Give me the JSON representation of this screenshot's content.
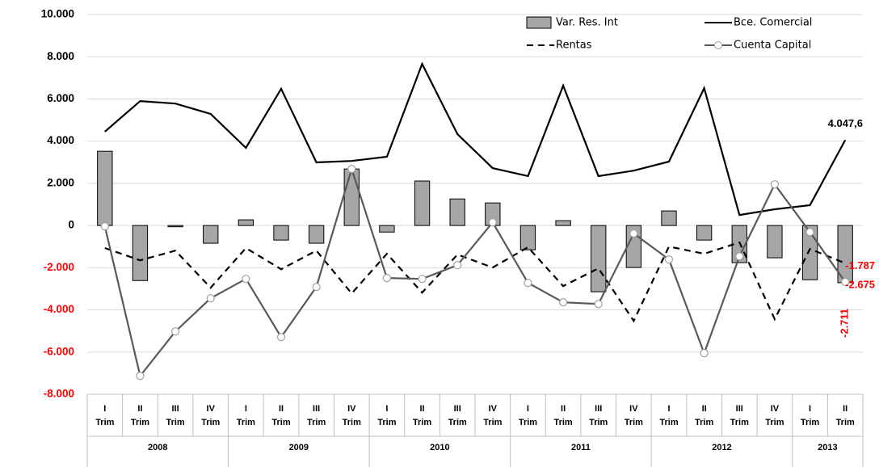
{
  "chart_data": {
    "type": "bar",
    "categories": [
      "I",
      "II",
      "III",
      "IV",
      "I",
      "II",
      "III",
      "IV",
      "I",
      "II",
      "III",
      "IV",
      "I",
      "II",
      "III",
      "IV",
      "I",
      "II",
      "III",
      "IV",
      "I",
      "II"
    ],
    "category_suffix": "Trim",
    "years": [
      "2008",
      "2008",
      "2008",
      "2008",
      "2009",
      "2009",
      "2009",
      "2009",
      "2010",
      "2010",
      "2010",
      "2010",
      "2011",
      "2011",
      "2011",
      "2011",
      "2012",
      "2012",
      "2012",
      "2012",
      "2013",
      "2013"
    ],
    "ylim": [
      -8000,
      10000
    ],
    "yticks": [
      {
        "value": -8000,
        "label": "-8.000"
      },
      {
        "value": -6000,
        "label": "-6.000"
      },
      {
        "value": -4000,
        "label": "-4.000"
      },
      {
        "value": -2000,
        "label": "-2.000"
      },
      0,
      {
        "value": 2000,
        "label": "2.000"
      },
      {
        "value": 4000,
        "label": "4.000"
      },
      {
        "value": 6000,
        "label": "6.000"
      },
      {
        "value": 8000,
        "label": "8.000"
      },
      {
        "value": 10000,
        "label": "10.000"
      }
    ],
    "negative_tick_color": "#ff0000",
    "grid": true,
    "series": [
      {
        "name": "Var. Res. Int",
        "type": "bar",
        "color": "#a6a6a6",
        "values": [
          3520,
          -2610,
          -60,
          -840,
          270,
          -690,
          -840,
          2680,
          -310,
          2110,
          1260,
          1070,
          -1150,
          230,
          -3140,
          -1990,
          690,
          -690,
          -1760,
          -1530,
          -2570,
          -2711
        ],
        "value_labels": [
          null,
          null,
          null,
          null,
          null,
          null,
          null,
          null,
          null,
          null,
          null,
          null,
          null,
          null,
          null,
          null,
          null,
          null,
          null,
          null,
          null,
          "-2.711"
        ],
        "label_color": "#ff0000"
      },
      {
        "name": "Bce. Comercial",
        "type": "line",
        "color": "#000000",
        "values": [
          4450,
          5900,
          5780,
          5290,
          3680,
          6480,
          2990,
          3060,
          3260,
          7660,
          4330,
          2720,
          2340,
          6630,
          2340,
          2600,
          3030,
          6510,
          500,
          770,
          960,
          4047.6
        ],
        "value_labels": [
          null,
          null,
          null,
          null,
          null,
          null,
          null,
          null,
          null,
          null,
          null,
          null,
          null,
          null,
          null,
          null,
          null,
          null,
          null,
          null,
          null,
          "4.047,6"
        ],
        "label_color": "#000000"
      },
      {
        "name": "Rentas",
        "type": "line",
        "dash": true,
        "color": "#000000",
        "values": [
          -1070,
          -1650,
          -1190,
          -2950,
          -1070,
          -2070,
          -1190,
          -3220,
          -1340,
          -3180,
          -1380,
          -1990,
          -1030,
          -2870,
          -2030,
          -4520,
          -1000,
          -1340,
          -800,
          -4440,
          -1110,
          -1787
        ],
        "value_labels": [
          null,
          null,
          null,
          null,
          null,
          null,
          null,
          null,
          null,
          null,
          null,
          null,
          null,
          null,
          null,
          null,
          null,
          null,
          null,
          null,
          null,
          "-1.787"
        ],
        "label_color": "#ff0000"
      },
      {
        "name": "Cuenta Capital",
        "type": "line",
        "marker": "circle",
        "color": "#595959",
        "values": [
          -40,
          -7130,
          -5020,
          -3450,
          -2530,
          -5290,
          -2910,
          2680,
          -2490,
          -2530,
          -1880,
          150,
          -2720,
          -3640,
          -3720,
          -380,
          -1610,
          -6050,
          -1460,
          1950,
          -310,
          -2675
        ],
        "value_labels": [
          null,
          null,
          null,
          null,
          null,
          null,
          null,
          null,
          null,
          null,
          null,
          null,
          null,
          null,
          null,
          null,
          null,
          null,
          null,
          null,
          null,
          "-2.675"
        ],
        "label_color": "#ff0000"
      }
    ]
  }
}
